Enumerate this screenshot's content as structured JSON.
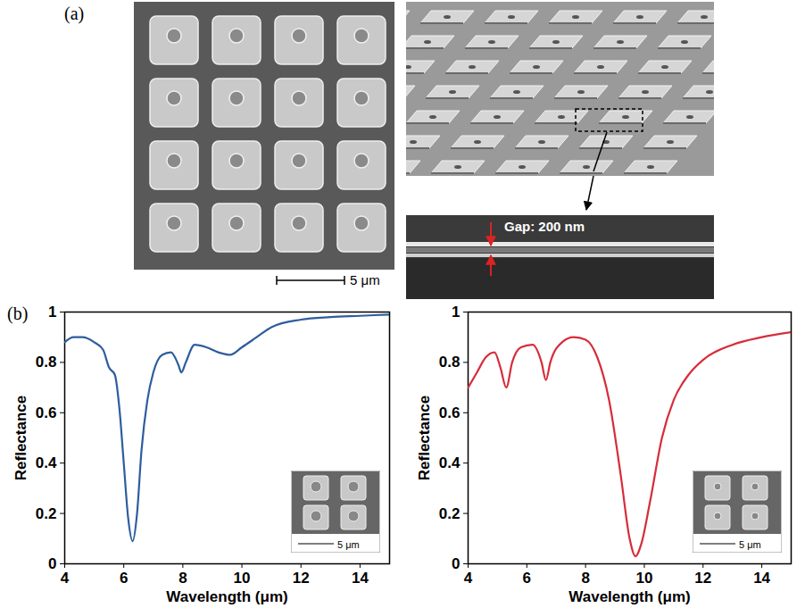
{
  "figure": {
    "panel_labels": [
      "(a)",
      "(b)"
    ],
    "sem_scale_bar": "5 μm",
    "gap_label": "Gap: 200 nm"
  },
  "chart_data": [
    {
      "type": "line",
      "xlabel": "Wavelength (μm)",
      "ylabel": "Reflectance",
      "color": "#2e5d9e",
      "x": [
        4,
        4.3,
        4.6,
        5.0,
        5.3,
        5.5,
        5.7,
        5.85,
        6.0,
        6.15,
        6.3,
        6.45,
        6.6,
        6.8,
        7.0,
        7.3,
        7.6,
        7.85,
        7.95,
        8.1,
        8.4,
        8.8,
        9.2,
        9.6,
        10,
        10.5,
        11,
        12,
        13,
        14,
        15
      ],
      "values": [
        0.88,
        0.9,
        0.9,
        0.88,
        0.85,
        0.78,
        0.75,
        0.62,
        0.4,
        0.18,
        0.09,
        0.2,
        0.45,
        0.65,
        0.76,
        0.83,
        0.84,
        0.79,
        0.76,
        0.8,
        0.87,
        0.86,
        0.84,
        0.83,
        0.86,
        0.9,
        0.94,
        0.97,
        0.98,
        0.985,
        0.99
      ],
      "xlim": [
        4,
        15
      ],
      "xticks": [
        4,
        6,
        8,
        10,
        12,
        14
      ],
      "ylim": [
        0,
        1
      ],
      "yticks": [
        0,
        0.2,
        0.4,
        0.6,
        0.8,
        1
      ],
      "annotations": [
        "5 μm"
      ]
    },
    {
      "type": "line",
      "xlabel": "Wavelength (μm)",
      "ylabel": "Reflectance",
      "color": "#d62d3a",
      "x": [
        4,
        4.3,
        4.6,
        4.9,
        5.1,
        5.3,
        5.5,
        5.8,
        6.2,
        6.5,
        6.65,
        6.8,
        7.2,
        7.6,
        8.0,
        8.4,
        8.8,
        9.2,
        9.5,
        9.7,
        9.9,
        10.2,
        10.6,
        11,
        11.5,
        12,
        13,
        14,
        15
      ],
      "values": [
        0.7,
        0.76,
        0.82,
        0.84,
        0.78,
        0.7,
        0.8,
        0.86,
        0.87,
        0.8,
        0.73,
        0.8,
        0.88,
        0.9,
        0.89,
        0.82,
        0.65,
        0.35,
        0.1,
        0.03,
        0.08,
        0.25,
        0.5,
        0.65,
        0.75,
        0.81,
        0.87,
        0.9,
        0.92
      ],
      "xlim": [
        4,
        15
      ],
      "xticks": [
        4,
        6,
        8,
        10,
        12,
        14
      ],
      "ylim": [
        0,
        1
      ],
      "yticks": [
        0,
        0.2,
        0.4,
        0.6,
        0.8,
        1
      ],
      "annotations": [
        "5 μm"
      ]
    }
  ]
}
